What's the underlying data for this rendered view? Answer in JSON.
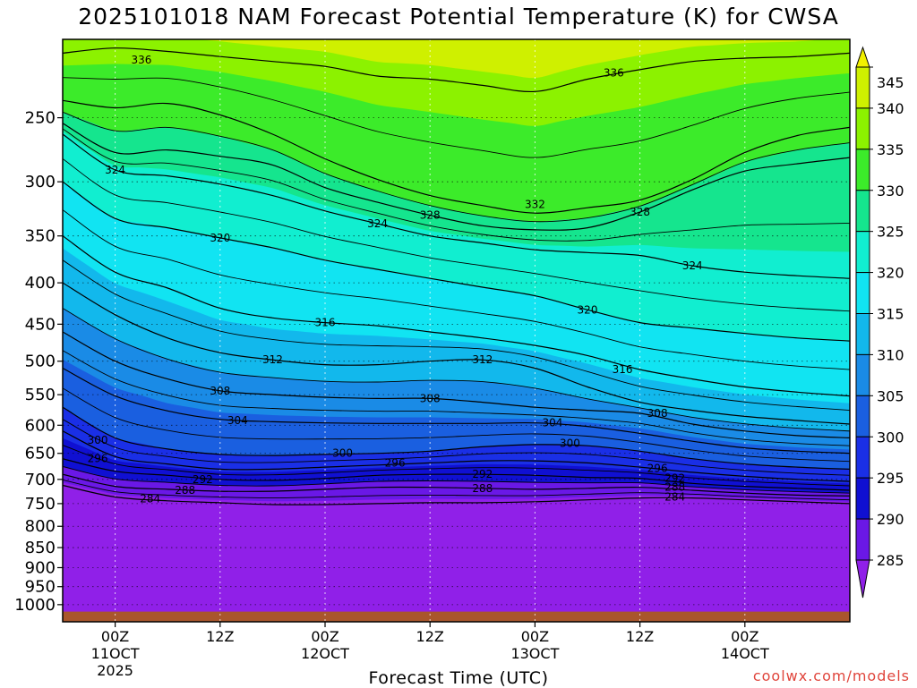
{
  "chart_data": {
    "type": "heatmap",
    "title": "2025101018 NAM Forecast Potential Temperature (K) for CWSA",
    "xlabel": "Forecast Time (UTC)",
    "ylabel": "",
    "y_scale": "log-pressure",
    "y_range_hPa": [
      1050,
      200
    ],
    "y_ticks": [
      250,
      300,
      350,
      400,
      450,
      500,
      550,
      600,
      650,
      700,
      750,
      800,
      850,
      900,
      950,
      1000
    ],
    "x_range_hours": [
      -6,
      84
    ],
    "x_ticks": [
      {
        "hour": 0,
        "lines": [
          "00Z",
          "11OCT",
          "2025"
        ]
      },
      {
        "hour": 12,
        "lines": [
          "12Z"
        ]
      },
      {
        "hour": 24,
        "lines": [
          "00Z",
          "12OCT"
        ]
      },
      {
        "hour": 36,
        "lines": [
          "12Z"
        ]
      },
      {
        "hour": 48,
        "lines": [
          "00Z",
          "13OCT"
        ]
      },
      {
        "hour": 60,
        "lines": [
          "12Z"
        ]
      },
      {
        "hour": 72,
        "lines": [
          "00Z",
          "14OCT"
        ]
      }
    ],
    "grid": true,
    "colorbar": {
      "labels": [
        345,
        340,
        335,
        330,
        325,
        320,
        315,
        310,
        305,
        300,
        295,
        290,
        285
      ],
      "bands": [
        {
          "min": 340,
          "max": 345,
          "color": "#cff000"
        },
        {
          "min": 335,
          "max": 340,
          "color": "#8cf200"
        },
        {
          "min": 330,
          "max": 335,
          "color": "#3ceb2a"
        },
        {
          "min": 325,
          "max": 330,
          "color": "#15e58e"
        },
        {
          "min": 320,
          "max": 325,
          "color": "#11eed0"
        },
        {
          "min": 315,
          "max": 320,
          "color": "#11e4f2"
        },
        {
          "min": 310,
          "max": 315,
          "color": "#12b8ec"
        },
        {
          "min": 305,
          "max": 310,
          "color": "#1a8be6"
        },
        {
          "min": 300,
          "max": 305,
          "color": "#1a5fe0"
        },
        {
          "min": 295,
          "max": 300,
          "color": "#1a2fe6"
        },
        {
          "min": 290,
          "max": 295,
          "color": "#1010d2"
        },
        {
          "min": 285,
          "max": 290,
          "color": "#6a18e6"
        }
      ],
      "top_arrow_color": "#f2f000",
      "bottom_arrow_color": "#9020e8"
    },
    "terrain_color": "#a9562c",
    "contours": [
      {
        "value": 336,
        "labels": [
          [
            3,
            212
          ],
          [
            57,
            220
          ]
        ],
        "pts": [
          [
            -6,
            208
          ],
          [
            0,
            205
          ],
          [
            6,
            207
          ],
          [
            12,
            210
          ],
          [
            18,
            213
          ],
          [
            24,
            216
          ],
          [
            30,
            222
          ],
          [
            36,
            224
          ],
          [
            42,
            228
          ],
          [
            48,
            232
          ],
          [
            54,
            224
          ],
          [
            60,
            218
          ],
          [
            66,
            213
          ],
          [
            72,
            211
          ],
          [
            78,
            210
          ],
          [
            84,
            208
          ]
        ]
      },
      {
        "value": 332,
        "labels": [
          [
            48,
            320
          ]
        ],
        "pts": [
          [
            -6,
            238
          ],
          [
            0,
            243
          ],
          [
            6,
            240
          ],
          [
            12,
            248
          ],
          [
            18,
            262
          ],
          [
            24,
            281
          ],
          [
            30,
            298
          ],
          [
            36,
            312
          ],
          [
            42,
            321
          ],
          [
            48,
            328
          ],
          [
            54,
            323
          ],
          [
            60,
            316
          ],
          [
            66,
            298
          ],
          [
            72,
            276
          ],
          [
            78,
            263
          ],
          [
            84,
            257
          ]
        ]
      },
      {
        "value": 328,
        "labels": [
          [
            36,
            330
          ],
          [
            60,
            327
          ]
        ],
        "pts": [
          [
            -6,
            254
          ],
          [
            0,
            276
          ],
          [
            6,
            274
          ],
          [
            12,
            279
          ],
          [
            18,
            286
          ],
          [
            24,
            305
          ],
          [
            30,
            318
          ],
          [
            36,
            330
          ],
          [
            42,
            340
          ],
          [
            48,
            344
          ],
          [
            54,
            342
          ],
          [
            60,
            327
          ],
          [
            66,
            307
          ],
          [
            72,
            291
          ],
          [
            78,
            285
          ],
          [
            84,
            280
          ]
        ]
      },
      {
        "value": 324,
        "labels": [
          [
            0,
            290
          ],
          [
            30,
            338
          ],
          [
            66,
            381
          ]
        ],
        "pts": [
          [
            -6,
            262
          ],
          [
            0,
            290
          ],
          [
            6,
            295
          ],
          [
            12,
            302
          ],
          [
            18,
            312
          ],
          [
            24,
            326
          ],
          [
            30,
            338
          ],
          [
            36,
            350
          ],
          [
            42,
            357
          ],
          [
            48,
            364
          ],
          [
            54,
            367
          ],
          [
            60,
            370
          ],
          [
            66,
            381
          ],
          [
            72,
            388
          ],
          [
            78,
            392
          ],
          [
            84,
            395
          ]
        ]
      },
      {
        "value": 320,
        "labels": [
          [
            12,
            352
          ],
          [
            54,
            432
          ]
        ],
        "pts": [
          [
            -6,
            300
          ],
          [
            0,
            333
          ],
          [
            6,
            342
          ],
          [
            12,
            352
          ],
          [
            18,
            362
          ],
          [
            24,
            375
          ],
          [
            30,
            385
          ],
          [
            36,
            395
          ],
          [
            42,
            405
          ],
          [
            48,
            415
          ],
          [
            54,
            432
          ],
          [
            60,
            448
          ],
          [
            66,
            455
          ],
          [
            72,
            462
          ],
          [
            78,
            468
          ],
          [
            84,
            472
          ]
        ]
      },
      {
        "value": 316,
        "labels": [
          [
            24,
            448
          ],
          [
            58,
            512
          ]
        ],
        "pts": [
          [
            -6,
            350
          ],
          [
            0,
            388
          ],
          [
            6,
            406
          ],
          [
            12,
            430
          ],
          [
            18,
            442
          ],
          [
            24,
            448
          ],
          [
            30,
            452
          ],
          [
            36,
            460
          ],
          [
            42,
            468
          ],
          [
            48,
            478
          ],
          [
            54,
            492
          ],
          [
            60,
            512
          ],
          [
            66,
            526
          ],
          [
            72,
            538
          ],
          [
            78,
            546
          ],
          [
            84,
            552
          ]
        ]
      },
      {
        "value": 312,
        "labels": [
          [
            18,
            498
          ],
          [
            42,
            498
          ]
        ],
        "pts": [
          [
            -6,
            400
          ],
          [
            0,
            438
          ],
          [
            6,
            468
          ],
          [
            12,
            488
          ],
          [
            18,
            498
          ],
          [
            24,
            505
          ],
          [
            30,
            505
          ],
          [
            36,
            500
          ],
          [
            42,
            498
          ],
          [
            48,
            510
          ],
          [
            54,
            538
          ],
          [
            60,
            562
          ],
          [
            66,
            575
          ],
          [
            72,
            585
          ],
          [
            78,
            592
          ],
          [
            84,
            598
          ]
        ]
      },
      {
        "value": 308,
        "labels": [
          [
            12,
            544
          ],
          [
            36,
            556
          ],
          [
            62,
            580
          ]
        ],
        "pts": [
          [
            -6,
            460
          ],
          [
            0,
            500
          ],
          [
            6,
            526
          ],
          [
            12,
            544
          ],
          [
            18,
            550
          ],
          [
            24,
            554
          ],
          [
            30,
            556
          ],
          [
            36,
            556
          ],
          [
            42,
            562
          ],
          [
            48,
            570
          ],
          [
            54,
            575
          ],
          [
            60,
            580
          ],
          [
            66,
            598
          ],
          [
            72,
            610
          ],
          [
            78,
            618
          ],
          [
            84,
            622
          ]
        ]
      },
      {
        "value": 304,
        "labels": [
          [
            14,
            592
          ],
          [
            50,
            596
          ]
        ],
        "pts": [
          [
            -6,
            510
          ],
          [
            0,
            552
          ],
          [
            6,
            576
          ],
          [
            12,
            590
          ],
          [
            18,
            594
          ],
          [
            24,
            596
          ],
          [
            30,
            597
          ],
          [
            36,
            597
          ],
          [
            42,
            597
          ],
          [
            48,
            596
          ],
          [
            54,
            602
          ],
          [
            60,
            614
          ],
          [
            66,
            628
          ],
          [
            72,
            640
          ],
          [
            78,
            646
          ],
          [
            84,
            650
          ]
        ]
      },
      {
        "value": 300,
        "labels": [
          [
            -2,
            626
          ],
          [
            26,
            650
          ],
          [
            52,
            632
          ]
        ],
        "pts": [
          [
            -6,
            570
          ],
          [
            0,
            622
          ],
          [
            6,
            642
          ],
          [
            12,
            652
          ],
          [
            18,
            654
          ],
          [
            24,
            652
          ],
          [
            30,
            650
          ],
          [
            36,
            646
          ],
          [
            42,
            638
          ],
          [
            48,
            634
          ],
          [
            54,
            636
          ],
          [
            60,
            646
          ],
          [
            66,
            660
          ],
          [
            72,
            670
          ],
          [
            78,
            676
          ],
          [
            84,
            680
          ]
        ]
      },
      {
        "value": 296,
        "labels": [
          [
            -2,
            660
          ],
          [
            32,
            668
          ],
          [
            62,
            678
          ]
        ],
        "pts": [
          [
            -6,
            610
          ],
          [
            0,
            656
          ],
          [
            6,
            670
          ],
          [
            12,
            680
          ],
          [
            18,
            680
          ],
          [
            24,
            676
          ],
          [
            30,
            672
          ],
          [
            36,
            668
          ],
          [
            42,
            664
          ],
          [
            48,
            664
          ],
          [
            54,
            668
          ],
          [
            60,
            676
          ],
          [
            66,
            686
          ],
          [
            72,
            694
          ],
          [
            78,
            700
          ],
          [
            84,
            704
          ]
        ]
      },
      {
        "value": 292,
        "labels": [
          [
            10,
            700
          ],
          [
            42,
            690
          ],
          [
            64,
            698
          ]
        ],
        "pts": [
          [
            -6,
            660
          ],
          [
            0,
            684
          ],
          [
            6,
            692
          ],
          [
            12,
            700
          ],
          [
            18,
            702
          ],
          [
            24,
            698
          ],
          [
            30,
            692
          ],
          [
            36,
            690
          ],
          [
            42,
            690
          ],
          [
            48,
            692
          ],
          [
            54,
            696
          ],
          [
            60,
            698
          ],
          [
            66,
            708
          ],
          [
            72,
            714
          ],
          [
            78,
            718
          ],
          [
            84,
            722
          ]
        ]
      },
      {
        "value": 288,
        "labels": [
          [
            8,
            722
          ],
          [
            42,
            718
          ],
          [
            64,
            716
          ]
        ],
        "pts": [
          [
            -6,
            690
          ],
          [
            0,
            714
          ],
          [
            6,
            720
          ],
          [
            12,
            724
          ],
          [
            18,
            724
          ],
          [
            24,
            720
          ],
          [
            30,
            716
          ],
          [
            36,
            716
          ],
          [
            42,
            718
          ],
          [
            48,
            720
          ],
          [
            54,
            718
          ],
          [
            60,
            716
          ],
          [
            66,
            722
          ],
          [
            72,
            728
          ],
          [
            78,
            732
          ],
          [
            84,
            734
          ]
        ]
      },
      {
        "value": 284,
        "labels": [
          [
            4,
            740
          ],
          [
            64,
            736
          ]
        ],
        "pts": [
          [
            -6,
            712
          ],
          [
            0,
            736
          ],
          [
            6,
            744
          ],
          [
            12,
            748
          ],
          [
            18,
            752
          ],
          [
            24,
            752
          ],
          [
            30,
            750
          ],
          [
            36,
            748
          ],
          [
            42,
            748
          ],
          [
            48,
            746
          ],
          [
            54,
            742
          ],
          [
            60,
            738
          ],
          [
            66,
            738
          ],
          [
            72,
            742
          ],
          [
            78,
            746
          ],
          [
            84,
            750
          ]
        ]
      }
    ]
  },
  "footer": {
    "credit": "coolwx.com/models"
  }
}
